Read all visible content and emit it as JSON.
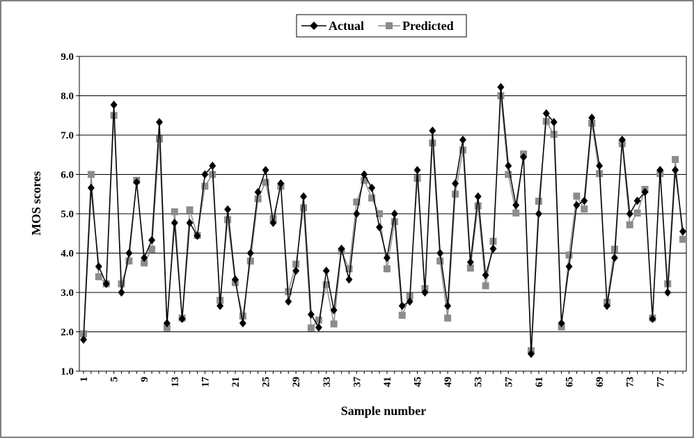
{
  "chart_data": {
    "type": "line",
    "xlabel": "Sample number",
    "ylabel": "MOS scores",
    "ylim": [
      1.0,
      9.0
    ],
    "yticks": [
      "1.0",
      "2.0",
      "3.0",
      "4.0",
      "5.0",
      "6.0",
      "7.0",
      "8.0",
      "9.0"
    ],
    "xticks": [
      "1",
      "5",
      "9",
      "13",
      "17",
      "21",
      "25",
      "29",
      "33",
      "37",
      "41",
      "45",
      "49",
      "53",
      "57",
      "61",
      "65",
      "69",
      "73",
      "77"
    ],
    "x": [
      1,
      2,
      3,
      4,
      5,
      6,
      7,
      8,
      9,
      10,
      11,
      12,
      13,
      14,
      15,
      16,
      17,
      18,
      19,
      20,
      21,
      22,
      23,
      24,
      25,
      26,
      27,
      28,
      29,
      30,
      31,
      32,
      33,
      34,
      35,
      36,
      37,
      38,
      39,
      40,
      41,
      42,
      43,
      44,
      45,
      46,
      47,
      48,
      49,
      50,
      51,
      52,
      53,
      54,
      55,
      56,
      57,
      58,
      59,
      60,
      61,
      62,
      63,
      64,
      65,
      66,
      67,
      68,
      69,
      70,
      71,
      72,
      73,
      74,
      75,
      76,
      77,
      78,
      79,
      80
    ],
    "grid": true,
    "legend_position": "top-center",
    "series": [
      {
        "name": "Actual",
        "color": "#000000",
        "marker": "diamond",
        "values": [
          1.8,
          5.66,
          3.66,
          3.22,
          7.77,
          3.0,
          4.0,
          5.8,
          3.88,
          4.33,
          7.33,
          2.22,
          4.77,
          2.33,
          4.77,
          4.44,
          6.0,
          6.22,
          2.66,
          5.11,
          3.33,
          2.22,
          4.0,
          5.55,
          6.11,
          4.77,
          5.77,
          2.77,
          3.55,
          5.44,
          2.44,
          2.11,
          3.55,
          2.55,
          4.11,
          3.33,
          5.0,
          6.0,
          5.66,
          4.66,
          3.88,
          5.0,
          2.66,
          2.77,
          6.11,
          3.0,
          7.11,
          4.0,
          2.66,
          5.77,
          6.88,
          3.77,
          5.44,
          3.44,
          4.11,
          8.22,
          6.22,
          5.22,
          6.44,
          1.44,
          5.0,
          7.55,
          7.33,
          2.22,
          3.66,
          5.22,
          5.33,
          7.44,
          6.22,
          2.66,
          3.88,
          6.88,
          5.0,
          5.33,
          5.55,
          2.33,
          6.11,
          3.0,
          6.11,
          4.55
        ]
      },
      {
        "name": "Predicted",
        "color": "#8c8c8c",
        "marker": "square",
        "values": [
          1.95,
          6.0,
          3.4,
          3.22,
          7.5,
          3.22,
          3.8,
          5.85,
          3.75,
          4.1,
          6.9,
          2.1,
          5.05,
          2.35,
          5.1,
          4.45,
          5.7,
          6.0,
          2.8,
          4.85,
          3.25,
          2.4,
          3.8,
          5.38,
          5.8,
          4.88,
          5.7,
          3.02,
          3.72,
          5.15,
          2.1,
          2.3,
          3.2,
          2.2,
          4.05,
          3.6,
          5.3,
          5.85,
          5.4,
          5.0,
          3.6,
          4.8,
          2.42,
          2.9,
          5.9,
          3.1,
          6.8,
          3.8,
          2.35,
          5.5,
          6.62,
          3.62,
          5.2,
          3.17,
          4.3,
          8.0,
          6.0,
          5.02,
          6.52,
          1.52,
          5.32,
          7.35,
          7.02,
          2.12,
          3.95,
          5.45,
          5.12,
          7.3,
          6.02,
          2.75,
          4.1,
          6.78,
          4.72,
          5.02,
          5.62,
          2.35,
          6.02,
          3.22,
          6.38,
          4.35
        ]
      }
    ]
  }
}
